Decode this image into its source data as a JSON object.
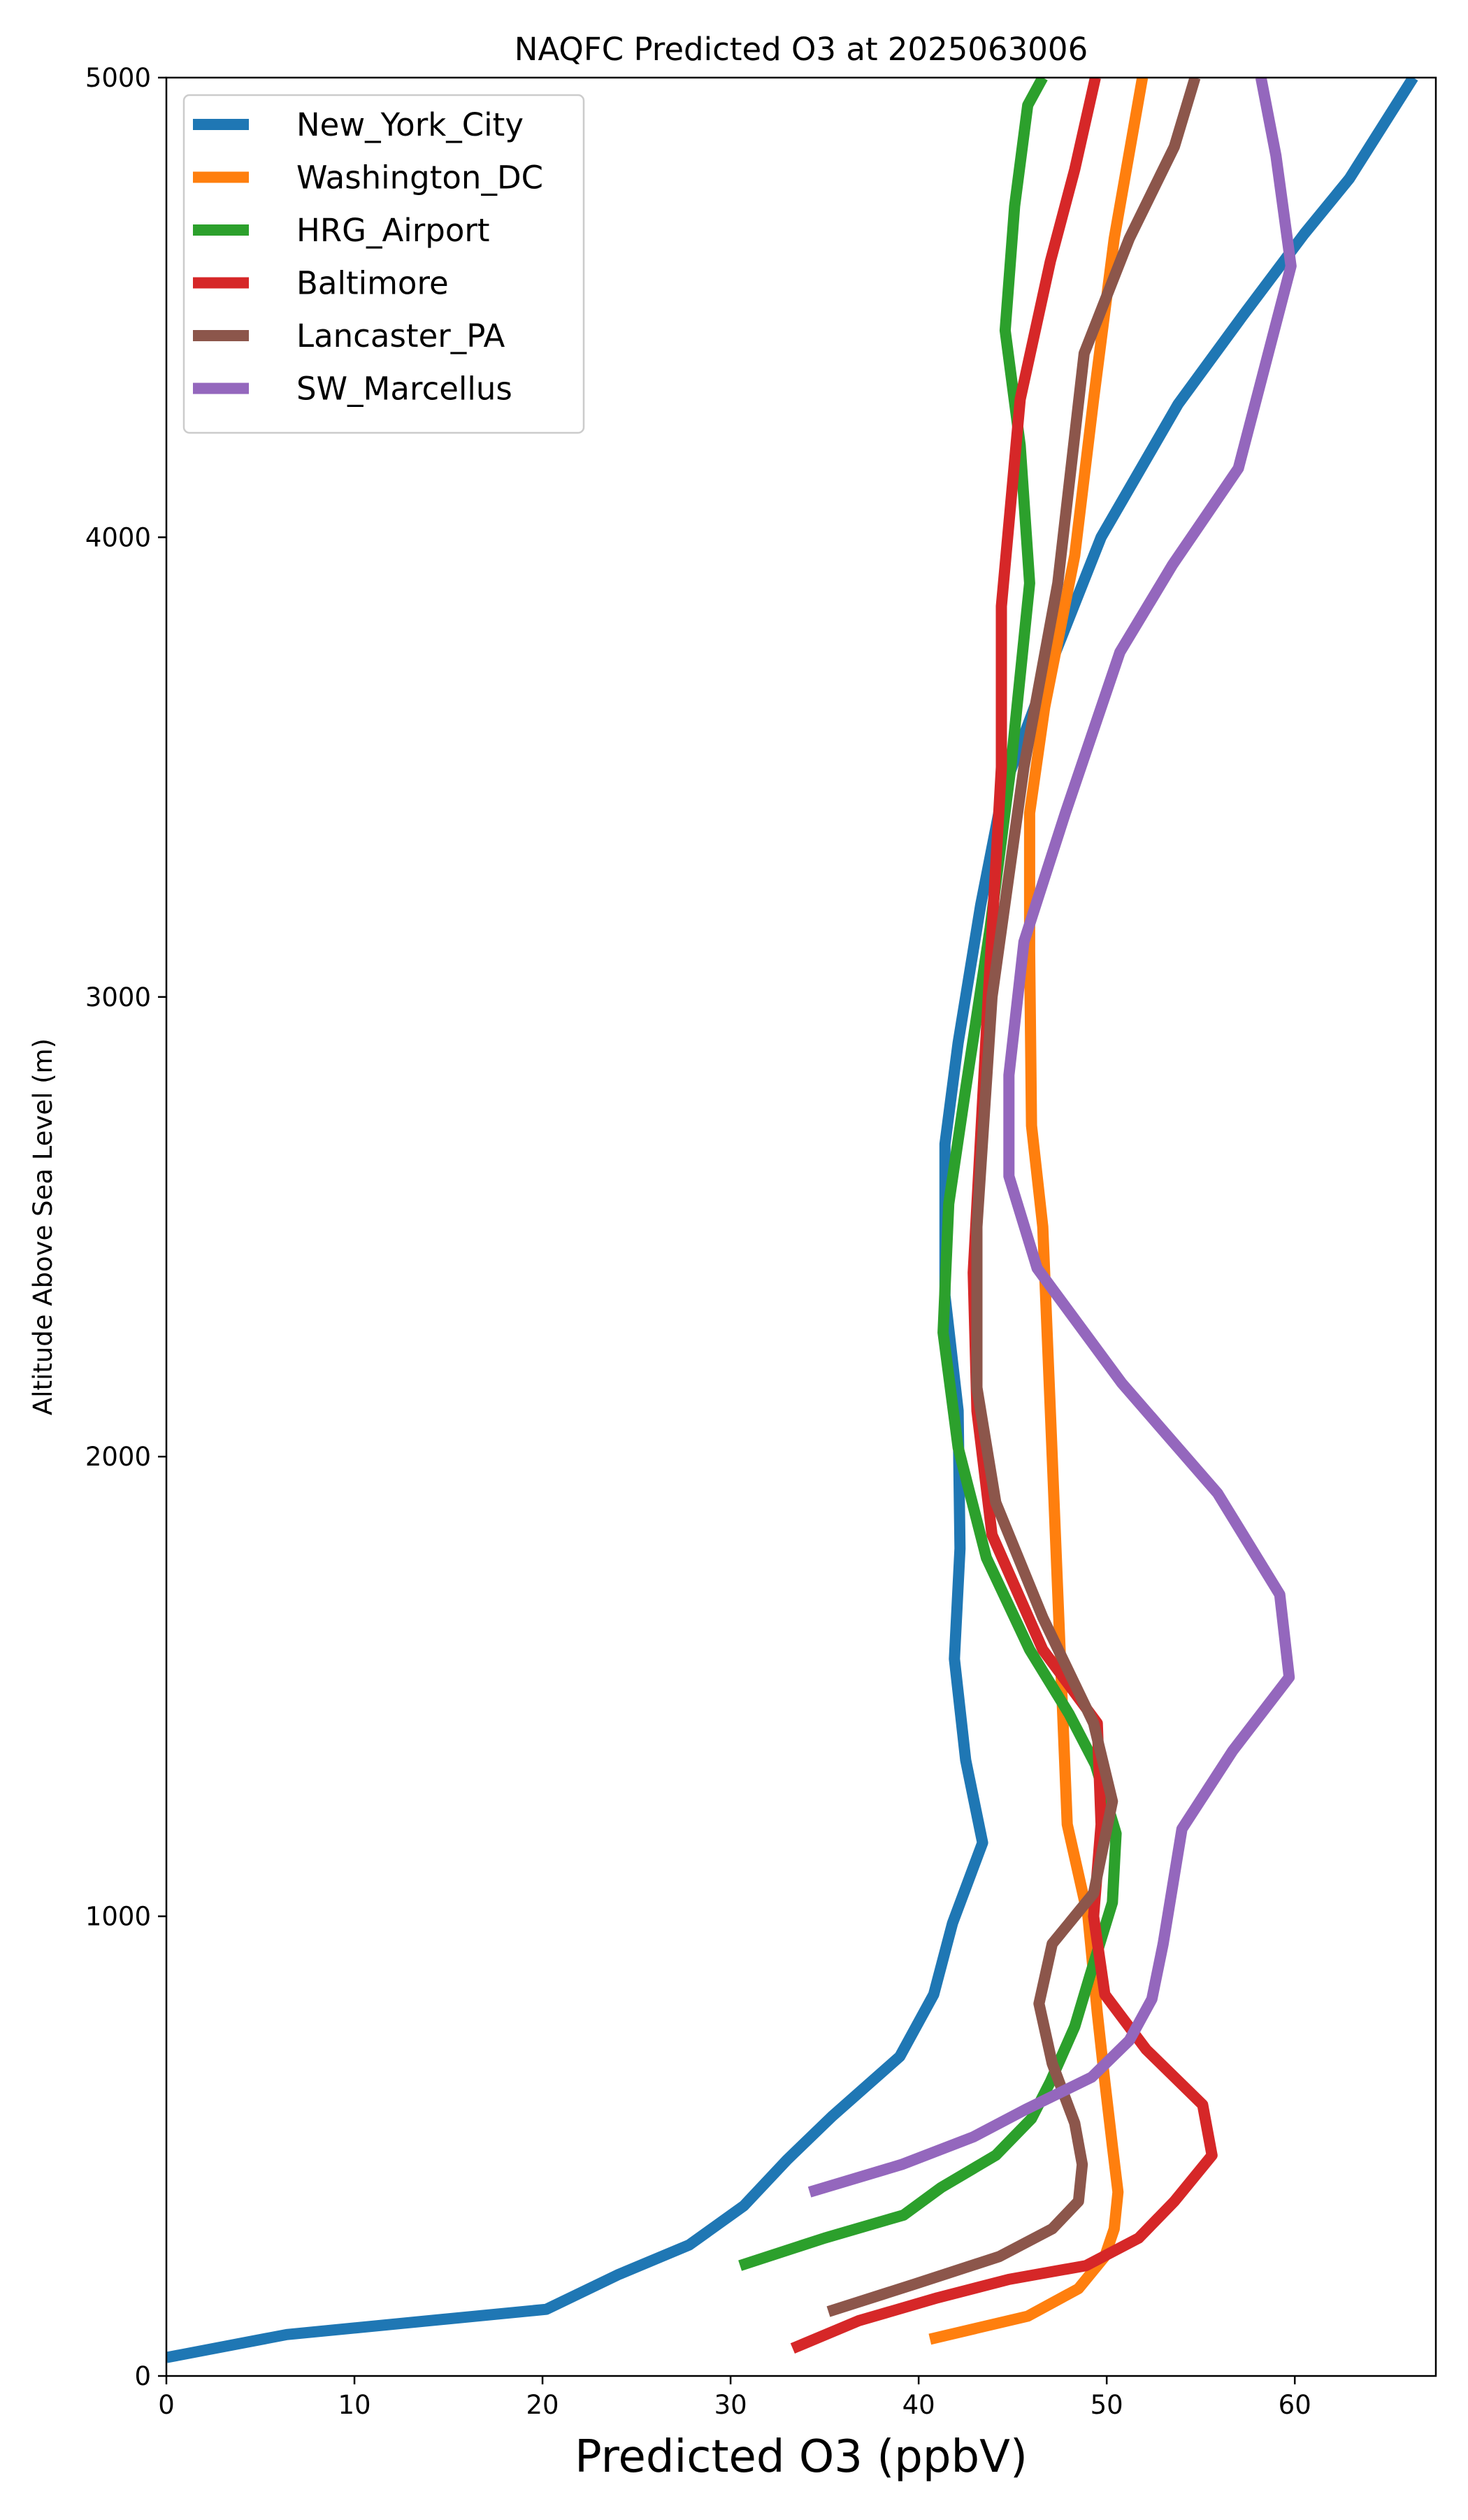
{
  "chart_data": {
    "type": "line",
    "title": "NAQFC Predicted O3 at 2025063006",
    "xlabel": "Predicted O3 (ppbV)",
    "ylabel": "Altitude Above Sea Level (m)",
    "xlim": [
      0,
      67.5
    ],
    "ylim": [
      0,
      5000
    ],
    "x_ticks": [
      0,
      10,
      20,
      30,
      40,
      50,
      60
    ],
    "y_ticks": [
      0,
      1000,
      2000,
      3000,
      4000,
      5000
    ],
    "grid": false,
    "legend_position": "upper-left",
    "series": [
      {
        "name": "New_York_City",
        "color": "#1f77b4",
        "points": [
          [
            0,
            40
          ],
          [
            6.4,
            90
          ],
          [
            20.2,
            145
          ],
          [
            24,
            220
          ],
          [
            27.8,
            285
          ],
          [
            30.7,
            370
          ],
          [
            33,
            470
          ],
          [
            35.4,
            565
          ],
          [
            39,
            695
          ],
          [
            40.8,
            830
          ],
          [
            41.8,
            985
          ],
          [
            43.4,
            1160
          ],
          [
            42.5,
            1340
          ],
          [
            41.9,
            1560
          ],
          [
            42.2,
            1800
          ],
          [
            42.1,
            2100
          ],
          [
            41.4,
            2350
          ],
          [
            41.4,
            2680
          ],
          [
            42.1,
            2900
          ],
          [
            43.3,
            3200
          ],
          [
            44.5,
            3450
          ],
          [
            46.8,
            3700
          ],
          [
            49.7,
            4000
          ],
          [
            53.8,
            4290
          ],
          [
            57.2,
            4480
          ],
          [
            60.5,
            4660
          ],
          [
            62.9,
            4780
          ],
          [
            66.3,
            5000
          ]
        ]
      },
      {
        "name": "Washington_DC",
        "color": "#ff7f0e",
        "points": [
          [
            40.6,
            80
          ],
          [
            45.8,
            130
          ],
          [
            48.5,
            190
          ],
          [
            49.9,
            260
          ],
          [
            50.4,
            320
          ],
          [
            50.6,
            400
          ],
          [
            50.3,
            500
          ],
          [
            49.9,
            640
          ],
          [
            49.5,
            790
          ],
          [
            49,
            1000
          ],
          [
            47.9,
            1200
          ],
          [
            47.6,
            1500
          ],
          [
            47.1,
            2000
          ],
          [
            46.6,
            2500
          ],
          [
            46,
            2720
          ],
          [
            45.9,
            3100
          ],
          [
            45.9,
            3400
          ],
          [
            46.7,
            3630
          ],
          [
            48.3,
            3960
          ],
          [
            49.3,
            4300
          ],
          [
            50.4,
            4650
          ],
          [
            51.9,
            5000
          ]
        ]
      },
      {
        "name": "HRG_Airport",
        "color": "#2ca02c",
        "points": [
          [
            30.5,
            240
          ],
          [
            35,
            300
          ],
          [
            39.2,
            350
          ],
          [
            41.2,
            410
          ],
          [
            44.1,
            480
          ],
          [
            46,
            560
          ],
          [
            47,
            640
          ],
          [
            48.3,
            760
          ],
          [
            49.1,
            870
          ],
          [
            50.3,
            1030
          ],
          [
            50.5,
            1180
          ],
          [
            49.4,
            1330
          ],
          [
            48,
            1440
          ],
          [
            45.9,
            1580
          ],
          [
            43.6,
            1780
          ],
          [
            42.1,
            2020
          ],
          [
            41.3,
            2270
          ],
          [
            41.6,
            2550
          ],
          [
            42.5,
            2800
          ],
          [
            43.8,
            3150
          ],
          [
            44.9,
            3500
          ],
          [
            45.9,
            3900
          ],
          [
            45.4,
            4200
          ],
          [
            44.6,
            4450
          ],
          [
            45.1,
            4720
          ],
          [
            45.8,
            4940
          ],
          [
            46.6,
            5000
          ]
        ]
      },
      {
        "name": "Baltimore",
        "color": "#d62728",
        "points": [
          [
            33.3,
            60
          ],
          [
            36.8,
            120
          ],
          [
            41,
            170
          ],
          [
            44.8,
            210
          ],
          [
            48.9,
            240
          ],
          [
            51.7,
            300
          ],
          [
            53.6,
            380
          ],
          [
            55.6,
            480
          ],
          [
            55.1,
            590
          ],
          [
            52.1,
            710
          ],
          [
            49.9,
            830
          ],
          [
            49.3,
            1000
          ],
          [
            49.7,
            1200
          ],
          [
            49.5,
            1420
          ],
          [
            46.6,
            1580
          ],
          [
            43.9,
            1830
          ],
          [
            43.1,
            2100
          ],
          [
            42.9,
            2400
          ],
          [
            43.7,
            3000
          ],
          [
            44.4,
            3500
          ],
          [
            44.4,
            3850
          ],
          [
            45.4,
            4300
          ],
          [
            47,
            4600
          ],
          [
            48.3,
            4800
          ],
          [
            49.4,
            5000
          ]
        ]
      },
      {
        "name": "Lancaster_PA",
        "color": "#8c564b",
        "points": [
          [
            35.2,
            140
          ],
          [
            39.8,
            200
          ],
          [
            44.3,
            260
          ],
          [
            47.1,
            320
          ],
          [
            48.5,
            380
          ],
          [
            48.7,
            460
          ],
          [
            48.3,
            550
          ],
          [
            47.1,
            680
          ],
          [
            46.4,
            810
          ],
          [
            47.1,
            940
          ],
          [
            49.3,
            1050
          ],
          [
            50.3,
            1250
          ],
          [
            49.3,
            1420
          ],
          [
            46.6,
            1650
          ],
          [
            44.1,
            1900
          ],
          [
            43.1,
            2150
          ],
          [
            43.1,
            2500
          ],
          [
            43.9,
            3000
          ],
          [
            45.6,
            3500
          ],
          [
            47.4,
            3900
          ],
          [
            48.8,
            4400
          ],
          [
            51.2,
            4650
          ],
          [
            53.6,
            4850
          ],
          [
            54.7,
            5000
          ]
        ]
      },
      {
        "name": "SW_Marcellus",
        "color": "#9467bd",
        "points": [
          [
            34.2,
            400
          ],
          [
            39.1,
            460
          ],
          [
            42.9,
            520
          ],
          [
            45.7,
            580
          ],
          [
            49.2,
            650
          ],
          [
            51.2,
            730
          ],
          [
            52.4,
            820
          ],
          [
            53,
            940
          ],
          [
            54,
            1190
          ],
          [
            56.7,
            1360
          ],
          [
            59.7,
            1520
          ],
          [
            59.2,
            1700
          ],
          [
            55.9,
            1920
          ],
          [
            50.8,
            2160
          ],
          [
            46.3,
            2410
          ],
          [
            44.8,
            2610
          ],
          [
            44.8,
            2830
          ],
          [
            45.6,
            3120
          ],
          [
            47.8,
            3400
          ],
          [
            50.7,
            3750
          ],
          [
            53.5,
            3940
          ],
          [
            57,
            4150
          ],
          [
            59.8,
            4590
          ],
          [
            59,
            4830
          ],
          [
            58.2,
            5000
          ]
        ]
      }
    ]
  }
}
